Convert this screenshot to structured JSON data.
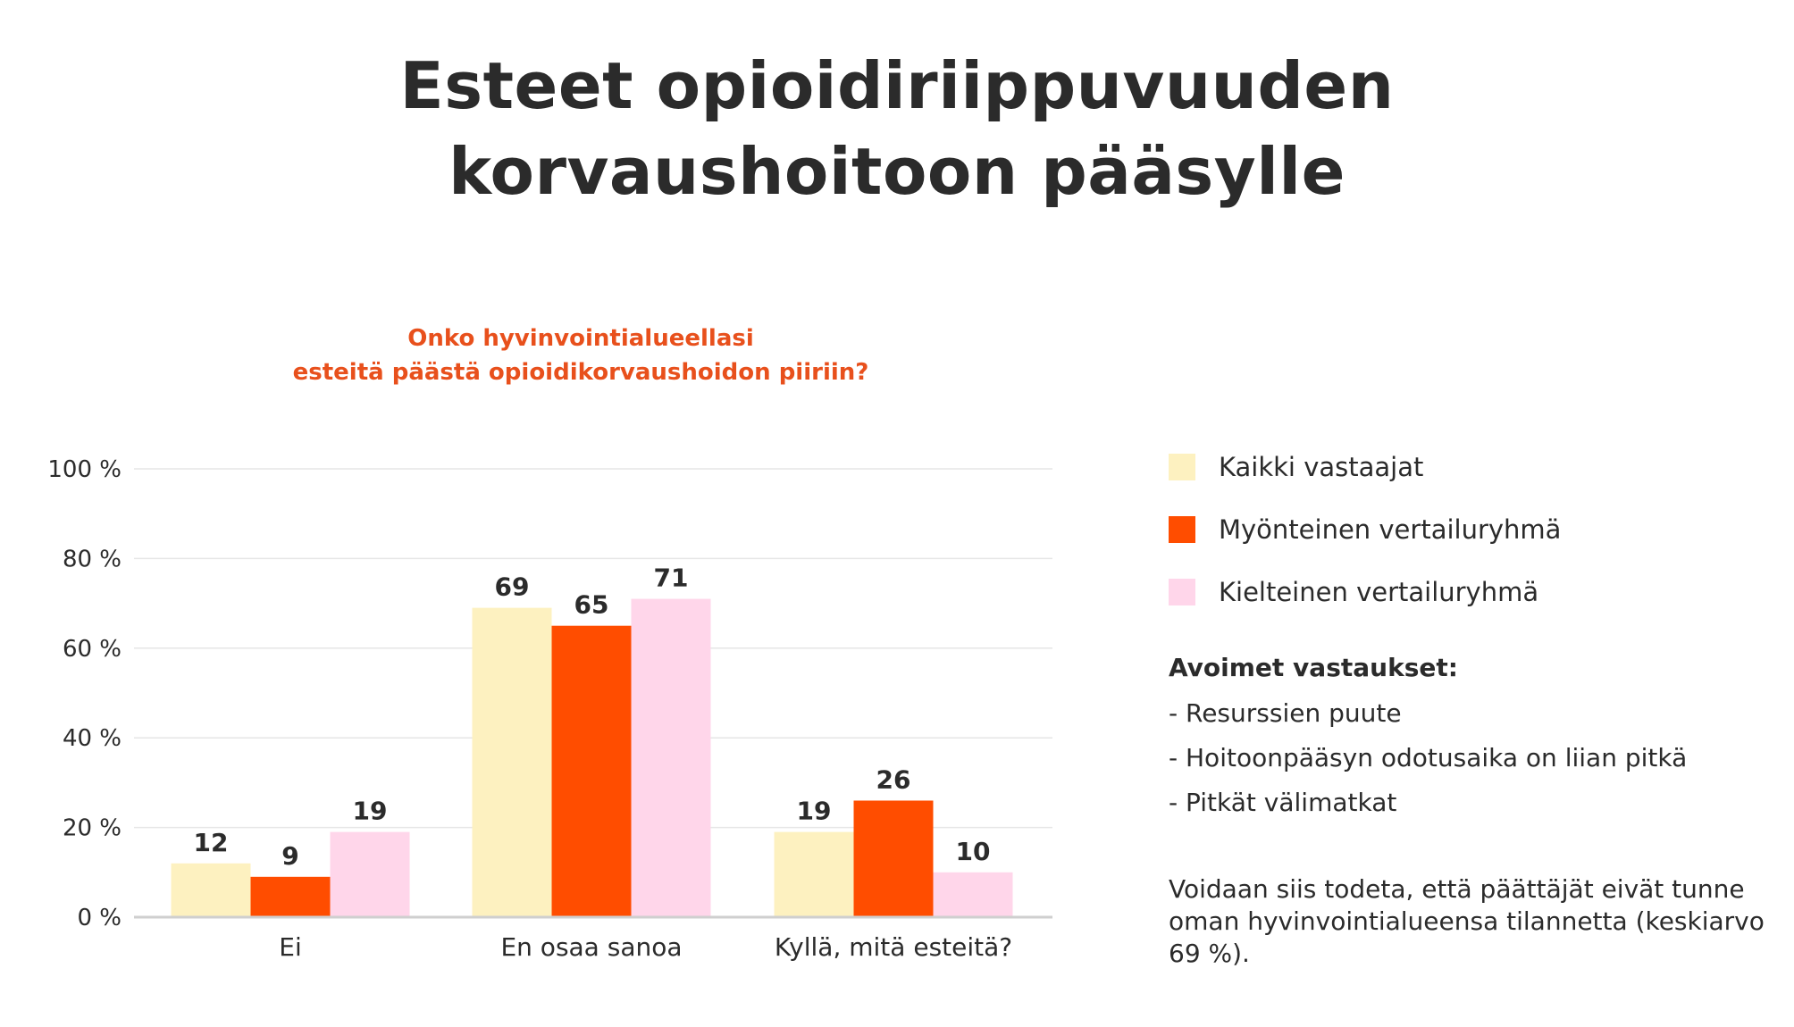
{
  "title": {
    "line1": "Esteet opioidiriippuvuuden",
    "line2": "korvaushoitoon pääsylle"
  },
  "colors": {
    "title": "#2b2b2b",
    "subtitle": "#e8501c",
    "gridline": "#e6e6e6",
    "axis": "#cfcfcf"
  },
  "chart_data": {
    "type": "bar",
    "title": "Onko hyvinvointialueellasi esteitä päästä opioidikorvaushoidon piiriin?",
    "title_lines": [
      "Onko hyvinvointialueellasi",
      "esteitä päästä opioidikorvaushoidon piiriin?"
    ],
    "xlabel": "",
    "ylabel": "",
    "ylim": [
      0,
      100
    ],
    "yticks": [
      0,
      20,
      40,
      60,
      80,
      100
    ],
    "ytick_labels": [
      "0 %",
      "20 %",
      "40 %",
      "60 %",
      "80 %",
      "100 %"
    ],
    "grid": true,
    "categories": [
      "Ei",
      "En osaa sanoa",
      "Kyllä, mitä esteitä?"
    ],
    "series": [
      {
        "name": "Kaikki vastaajat",
        "color": "#fdf1c0",
        "values": [
          12,
          69,
          19
        ]
      },
      {
        "name": "Myönteinen vertailuryhmä",
        "color": "#ff4d00",
        "values": [
          9,
          65,
          26
        ]
      },
      {
        "name": "Kielteinen vertailuryhmä",
        "color": "#ffd6ea",
        "values": [
          19,
          71,
          10
        ]
      }
    ],
    "legend_position": "right"
  },
  "notes": {
    "heading": "Avoimet vastaukset:",
    "items": [
      "- Resurssien puute",
      "- Hoitoonpääsyn odotusaika on liian pitkä",
      "- Pitkät välimatkat"
    ]
  },
  "conclusion": "Voidaan siis todeta, että päättäjät eivät tunne oman hyvinvointialueensa tilannetta (keskiarvo 69 %)."
}
